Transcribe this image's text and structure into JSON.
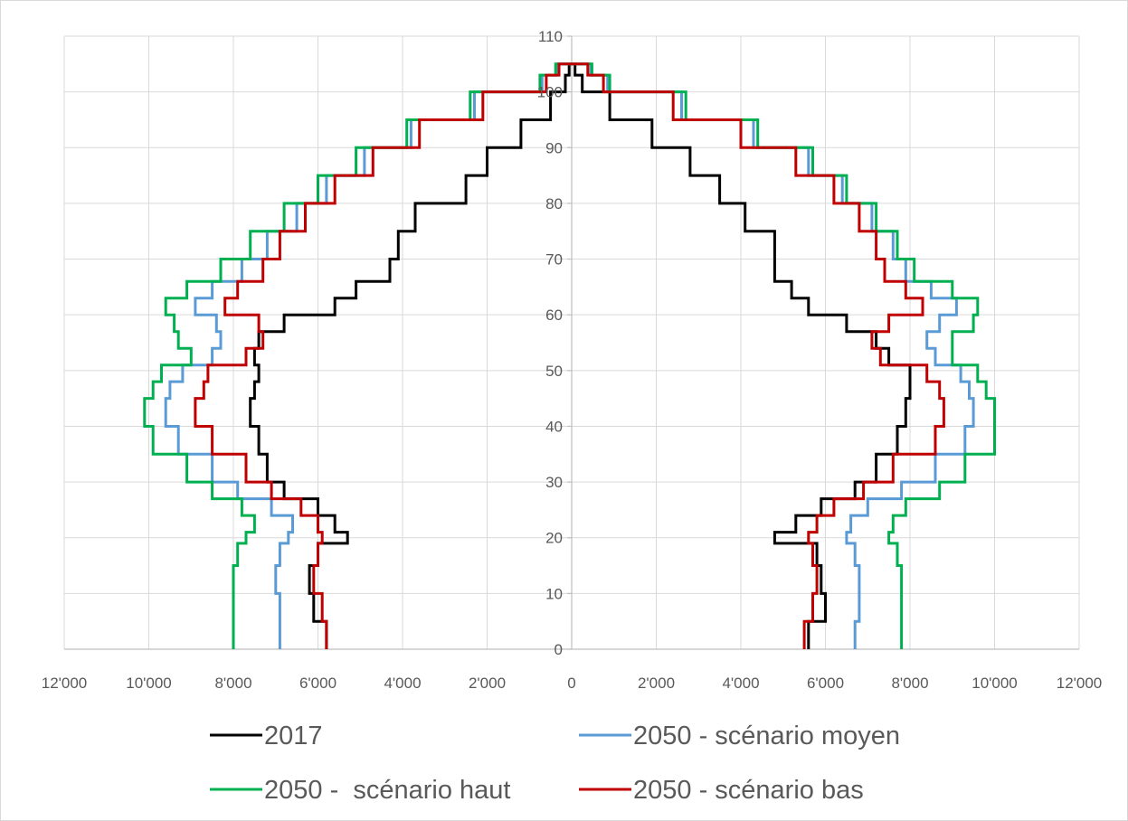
{
  "chart_data": {
    "type": "line",
    "title": "",
    "xlabel": "",
    "ylabel": "",
    "xlim": [
      -12000,
      12000
    ],
    "ylim": [
      0,
      110
    ],
    "x_ticks": [
      -12000,
      -10000,
      -8000,
      -6000,
      -4000,
      -2000,
      0,
      2000,
      4000,
      6000,
      8000,
      10000,
      12000
    ],
    "x_tick_labels": [
      "12'000",
      "10'000",
      "8'000",
      "6'000",
      "4'000",
      "2'000",
      "0",
      "2'000",
      "4'000",
      "6'000",
      "8'000",
      "10'000",
      "12'000"
    ],
    "y_ticks": [
      0,
      10,
      20,
      30,
      40,
      50,
      60,
      70,
      80,
      90,
      100,
      110
    ],
    "y_tick_labels": [
      "0",
      "10",
      "20",
      "30",
      "40",
      "50",
      "60",
      "70",
      "80",
      "90",
      "100",
      "110"
    ],
    "grid": true,
    "legend_position": "bottom",
    "age": [
      0,
      5,
      10,
      15,
      19,
      21,
      24,
      27,
      30,
      35,
      40,
      45,
      48,
      51,
      54,
      57,
      60,
      63,
      66,
      70,
      75,
      80,
      85,
      90,
      95,
      100,
      103,
      105
    ],
    "series": [
      {
        "name": "2017",
        "color": "#000000",
        "left": [
          5800,
          6100,
          6200,
          6000,
          5300,
          5600,
          6000,
          6800,
          7200,
          7400,
          7600,
          7500,
          7400,
          7500,
          7400,
          6800,
          5600,
          5100,
          4300,
          4100,
          3700,
          2500,
          2000,
          1200,
          500,
          150,
          60,
          30
        ],
        "right": [
          5600,
          6000,
          5900,
          5800,
          4800,
          5300,
          5900,
          6700,
          7200,
          7700,
          7900,
          8000,
          8000,
          7500,
          7200,
          6500,
          5600,
          5200,
          4800,
          4800,
          4100,
          3500,
          2800,
          1900,
          900,
          250,
          80,
          40
        ]
      },
      {
        "name": "2050 - scénario moyen",
        "color": "#5b9bd5",
        "left": [
          6900,
          6900,
          7000,
          6900,
          6700,
          6600,
          7100,
          7900,
          8500,
          9300,
          9600,
          9500,
          9200,
          8500,
          8300,
          8400,
          8900,
          8500,
          7800,
          7200,
          6500,
          5800,
          4900,
          3800,
          2300,
          700,
          350,
          220
        ],
        "right": [
          6700,
          6800,
          6800,
          6700,
          6500,
          6600,
          7000,
          7800,
          8600,
          9300,
          9500,
          9400,
          9200,
          8600,
          8400,
          8700,
          9100,
          8500,
          7900,
          7600,
          7100,
          6400,
          5600,
          4300,
          2600,
          850,
          450,
          280
        ]
      },
      {
        "name": "2050 -  scénario haut",
        "color": "#00b050",
        "left": [
          8000,
          8000,
          8000,
          7900,
          7700,
          7500,
          7800,
          8500,
          9100,
          9900,
          10100,
          9900,
          9700,
          9000,
          9300,
          9400,
          9600,
          9100,
          8300,
          7600,
          6800,
          6000,
          5100,
          3900,
          2400,
          750,
          380,
          240
        ],
        "right": [
          7800,
          7800,
          7800,
          7700,
          7500,
          7600,
          7900,
          8700,
          9300,
          10000,
          10000,
          9800,
          9600,
          9000,
          9000,
          9500,
          9600,
          9000,
          8100,
          7700,
          7200,
          6500,
          5700,
          4400,
          2700,
          900,
          480,
          300
        ]
      },
      {
        "name": "2050 - scénario bas",
        "color": "#c00000",
        "left": [
          5800,
          5900,
          6100,
          6000,
          5900,
          6000,
          6400,
          7100,
          7700,
          8500,
          8900,
          8700,
          8600,
          7700,
          7300,
          7400,
          8200,
          7900,
          7300,
          6900,
          6300,
          5600,
          4700,
          3600,
          2100,
          600,
          300,
          200
        ],
        "right": [
          5500,
          5700,
          5800,
          5700,
          5600,
          5800,
          6200,
          6900,
          7600,
          8600,
          8800,
          8700,
          8400,
          7300,
          7100,
          7500,
          8300,
          7900,
          7400,
          7200,
          6800,
          6200,
          5300,
          4000,
          2400,
          750,
          380,
          250
        ]
      }
    ]
  }
}
